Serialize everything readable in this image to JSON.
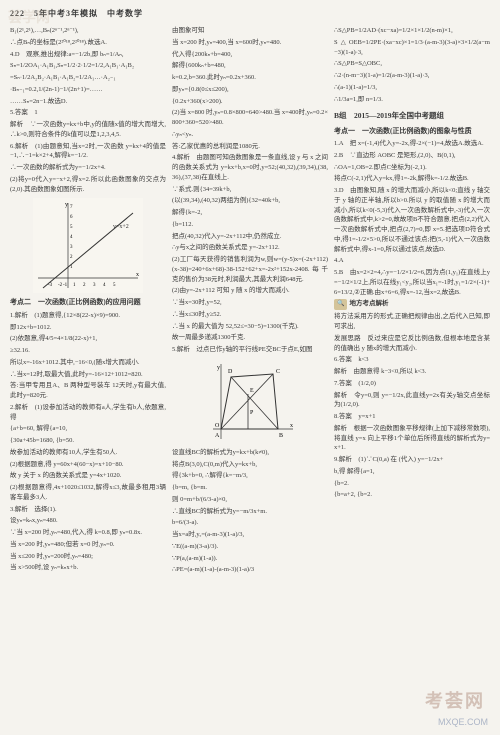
{
  "header": "222　5年中考3年模拟　中考数学",
  "watermark_top": "荟学网",
  "watermark1": "考荟网",
  "watermark2": "MXQE.COM",
  "col1": {
    "lines": [
      "B₁(2¹,2¹),…,Bₙ(2ⁿ⁻¹,2ⁿ⁻¹),",
      "∴点Bₙ的坐标是(2²⁰¹⁸,2²⁰¹⁸).故选A.",
      "4.D　观察,推出规律:a=−1/2b,即 bₙ=1/Aₙ,",
      "Sₙ=1/2OA₁·A₁B₁,Sₙ=1/2·2·1/2=1/2,A₁B₁·A₁B₂",
      "=Sₙ·1/2A₂B₂·A₁B₁·A₁B₂=1/2A₁…·A₂₋₁",
      "·Bₙ₋₁=0.2,1/(2n-1)−1/(2n+1)=……",
      "……Sₙ=2n−1.故选D.",
      "5.答案　1",
      "解析　∵一次函数y=kx+b中,y的值随x值的增大而增大,∴k>0,则符合条件的k值可以是1,2,3,4,5.",
      "6.解析　(1)由题意知,当x=2时,一次函数 y=kx+4的值是−1,∴−1=k×2+4,解得k=−1/2.",
      "∴一次函数的解析式为y=−1/2x+4.",
      "(2)将y=0代入y=−x+2,得x=2.所以此函数图象的交点为(2,0).其函数图象如图所示."
    ],
    "graph_label_y": "y=x+2",
    "graph_ticks_x": [
      "-3",
      "-2",
      "-1",
      "0",
      "1",
      "2",
      "3",
      "4",
      "5"
    ],
    "graph_ticks_y": [
      "1",
      "2",
      "3",
      "4",
      "5",
      "6",
      "7"
    ],
    "kaodian2_title": "考点二　一次函数(正比例函数)的应用问题",
    "k2_lines": [
      "1.解析　(1)题意得,{12×8(22-x)×9)=900.",
      "即12x+b=1012.",
      "(2)依题意,得4/5=4×1/8(22-x)+1,",
      "≥32.16.",
      "所以x=-16x+1012.其中,−16<0,(随x增大而减小.",
      "∴当x=12时,取最大值,此时y=-16×12+1012=820.",
      "答:当甲专用且A、B 两种型号装车 12天时,y有最大值,此时y=820元.",
      "2.解析　(1)设参加活动的教师有a人,学生有b人,依题意,得",
      "{a+b=60, 解得{a=10,",
      "{30a+45b=1680,  {b=50.",
      "故参加活动的教师有10人,学生有50人.",
      "(2)根据题意,得 y=60x+4(60−x)=x+10−80.",
      "故 y 关于 x 的函数关系式是 y=4x+1020.",
      "(2)根据题意得,4x+1020≤1032,解得x≤3,故最多租用3辆客车最多3人.",
      "3.解析　选择(1).",
      "设yₙ=kₙx,yₙ=480.",
      "∵当 x=200 时,yₙ=480,代入,得 k=0.8,即 yₙ=0.8x.",
      "当 x=200 时,yₙ=480;但若 x=0 时,yₙ=0.",
      "当 x≤200 时,yₙ=200时,yₙ=480;",
      "当 x>500时,设 yₙ=kₙx+b."
    ]
  },
  "col2": {
    "lines": [
      "由图象可知",
      "当 x=200 时,yₙ=400,当 x=600时,yₙ=480.",
      "代入得{200kₙ+b=400,",
      "解得{600kₙ+b=480,",
      "k=0.2,b=360.此时yₙ=0.2x+360.",
      "即yₙ={0.8(0≤x≤200),",
      "        {0.2x+360(x>200).",
      "(2)当 x=800 时,yₙ=0.8×800=640>480.当 x=400时,yₙ=0.2×800+360=520>480.",
      "∴yₙ<yₙ.",
      "答:乙家优惠的总利润是1080元.",
      "4.解析　由题图可知函数图象是一条直线,设 y 与 x 之间的函数关系式为 y=kx+b,x=0时,y=52;(40,32),(39,34),(38,36),(37,38)在直线上.",
      "∵系式.则{34=39k+b,",
      "(以(39,34),(40,32)两组为例){32=40k+b,",
      "解得{k=-2,",
      "    {b=112.",
      "把点(40,32)代入y=-2x+112中,仍然成立.",
      "∴y与x之间的函数关系式是 y=-2x+112.",
      "(2)工厂每天获得的销售利润为w,则w=(y-5)x=(-2x+112)(x-38)=240+6x+68)-38-152+62+x=-2x²+152x-2408.每千克的售价为38元时,利润最大,其最大利润648元.",
      "(2)由y=-2x+112 可知 y 随 x 的增大而减小.",
      "∵当x=30时,y=52,",
      "∴当x≤30时,y≥52.",
      "∴当 x 的最大值为 52,52≤=30−5)=1300(千克).",
      "故一周最多递减1300千克.",
      "5.解析　过点已作y轴的平行线PE交BC于点E,如图"
    ],
    "graph2_labels": [
      "D",
      "C",
      "E",
      "P",
      "A",
      "B",
      "x",
      "y",
      "O"
    ],
    "k2b_lines": [
      "设直线BC的解析式为y=kx+b(k≠0),",
      "将点B(3,0),C(0,m)代入y=kx+b,",
      "得{3k+b=0, ∴解得{k=−m/3,",
      "  {b=m,      {b=m.",
      "则 0=m+b/(6/3-a)×0,",
      "∴直线BC的解析式为y=−m/3x+m.",
      "b=6/(3-a).",
      "当x=a时,yₑ=(a-m-3)(1-a)/3,",
      "∵E((a-m)(3-a)/3).",
      "∵P(a,(a-m)(1-a)).",
      "∴PE=(a-m)(1-a)-(a-m-3)(1-a)/3"
    ]
  },
  "col3": {
    "lines": [
      "∴S△PB=1/2AD·(xc−xa)=1/2×1×1/2(n-m)×1,",
      "S△OEB=1/2PE·(xa−xc)×1=1/3·(a-m-3)(3-a)×3×1/2(a−m−3)(1-a)·3,",
      "∴S△PB=S△OBC,",
      "∴2·(n-m−3)(1-a)=1/2(a-m-3)(1-a)·3,",
      "∴(a-1)(1-a)=1/3,",
      "∴1/3a=1,即 n=1/3."
    ],
    "groupB_title": "B组　2015—2019年全国中考题组",
    "kaodian_b": "考点一　一次函数(正比例函数)的图象与性质",
    "b_lines": [
      "1.A　把 x=(-1,4)代入y=-2x,得-2×(−1)=4,故选A.故选A.",
      "2.B　∵直边形 AOBC 是矩形,(2,0)、B(0,1),",
      "∴OA=1,OB=2.即点C坐标为(-2,1).",
      "将点C(-2,1)代入y=kx,得1=-2k,解得k=-1/2.故选B.",
      "3.D　由图象知,随 x 的增大而减小,所以k<0;直线 y 轴交于 y 轴的正半轴,所以b>0.所以 y 的取值随 x 的增大而减小,所以k<0(-5,3)代入一次函数解析式中,-3)代入一次函数解析式中,k>2=0,故故项B不符合题意.把点(2,2)代入一次函数解析式中,把点(2,7)=0,即 x=5.把选项D符合式中,得1=-1/2×5>0,所以不通过该点;把(5,-1)代入一次函数解析式中,得x-1=0,所以通过该点,故选D.",
      "4.A",
      "5.B　由x=2×2=4,∴y=−1/2×1/2=6,因为点(1,y₁)在直线上y=−1/2×1/2上,所以在线y₁<y₂,所以当x₁=-1时,y₁=1/2×(-1)+6=13/2,②正确.由x+6=6,得x=-12,当x=2,故选B."
    ],
    "difang_title": "地方考点解析",
    "difang_lines": [
      "将方法采用方的形式,正确把规律由出,之后代入已知,即可求出,",
      "发展思路　反过来应是它反比例函数,但根本地是含某的值确出 y 随x的增大而减小.",
      "6.答案　k<3",
      "解析　由题意得 k−3<0,所以 k<3.",
      "7.答案　(1/2,0)",
      "解析　令y=0,则 y=−1/2x,此直线y=2x有关y轴交点坐标为(1/2,0).",
      "8.答案　y=x+1",
      "解析　根据一次函数图象平移规律(上加下减移常数项),将直线 y=x 向上平移1个单位后所得直线的解析式为y=x+1.",
      "9.解析　(1)∵C(0,a) 在 (代入) y=−1/2x+",
      "b,得 解得{a=1,",
      "           {b=2.",
      "   {b=a+2,   {b=2."
    ]
  }
}
